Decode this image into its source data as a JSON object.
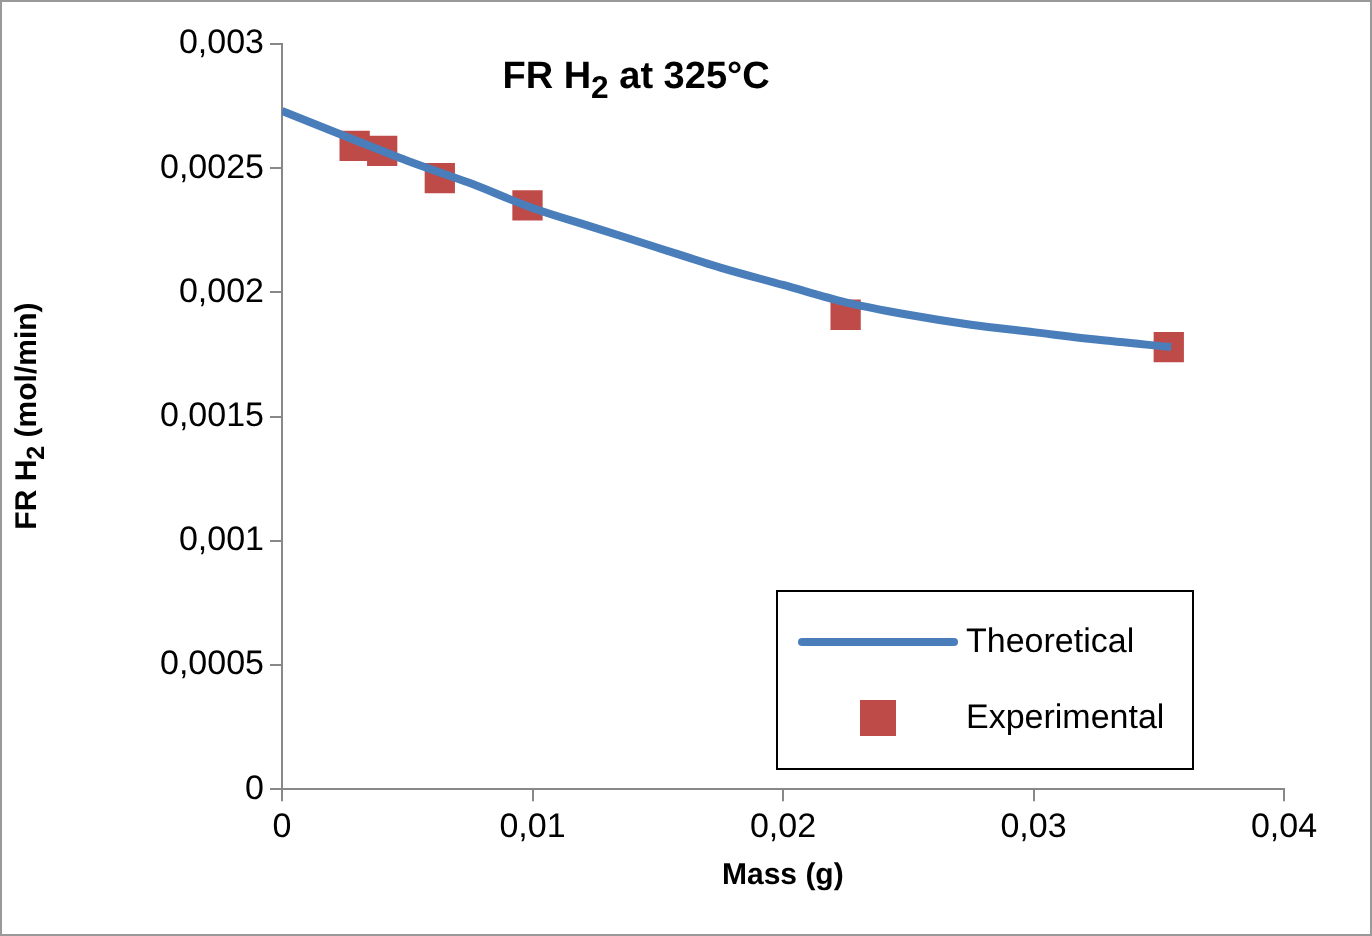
{
  "chart_data": {
    "type": "scatter",
    "title": "FR H$_{2}$ at 325°C",
    "xlabel": "Mass (g)",
    "ylabel": "FR H$_{2}$ (mol/min)",
    "xlim": [
      0,
      0.04
    ],
    "ylim": [
      0,
      0.003
    ],
    "xticks": [
      0,
      {
        "value": 0.01,
        "label": "0,01"
      },
      {
        "value": 0.02,
        "label": "0,02"
      },
      {
        "value": 0.03,
        "label": "0,03"
      },
      {
        "value": 0.04,
        "label": "0,04"
      }
    ],
    "yticks": [
      0,
      {
        "value": 0.0005,
        "label": "0,0005"
      },
      {
        "value": 0.001,
        "label": "0,001"
      },
      {
        "value": 0.0015,
        "label": "0,0015"
      },
      {
        "value": 0.002,
        "label": "0,002"
      },
      {
        "value": 0.0025,
        "label": "0,0025"
      },
      {
        "value": 0.003,
        "label": "0,003"
      }
    ],
    "grid": false,
    "legend": "bottom right",
    "series": [
      {
        "name": "Theoretical",
        "type": "line",
        "color": "#4a7ebb",
        "marker": "none",
        "line_style": "solid",
        "x": [
          0,
          0.0025,
          0.005,
          0.0075,
          0.01,
          0.0125,
          0.015,
          0.0175,
          0.02,
          0.0225,
          0.025,
          0.0275,
          0.03,
          0.0325,
          0.0355
        ],
        "values": [
          0.00273,
          0.00263,
          0.00253,
          0.00244,
          0.00234,
          0.00226,
          0.00218,
          0.0021,
          0.00203,
          0.00196,
          0.00191,
          0.00187,
          0.00184,
          0.00181,
          0.00178
        ]
      },
      {
        "name": "Experimental",
        "type": "scatter",
        "color": "#be4b48",
        "marker": "square",
        "x": [
          0.0029,
          0.004,
          0.0063,
          0.0098,
          0.0225,
          0.0354
        ],
        "values": [
          0.00259,
          0.00257,
          0.00246,
          0.00235,
          0.00191,
          0.00178
        ]
      }
    ]
  }
}
